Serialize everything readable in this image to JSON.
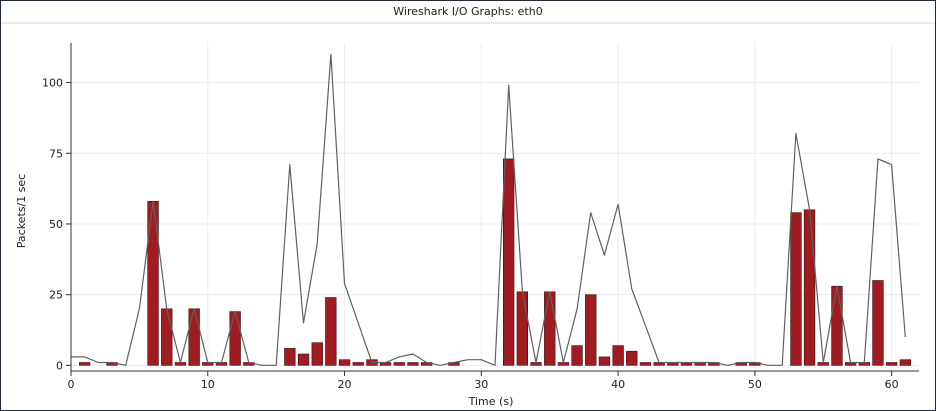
{
  "window": {
    "title": "Wireshark I/O Graphs: eth0"
  },
  "chart_data": {
    "type": "bar",
    "title": "Wireshark I/O Graphs: eth0",
    "xlabel": "Time (s)",
    "ylabel": "Packets/1 sec",
    "xlim": [
      0,
      62
    ],
    "ylim": [
      -2,
      114
    ],
    "xticks": [
      0,
      10,
      20,
      30,
      40,
      50,
      60
    ],
    "yticks": [
      0,
      25,
      50,
      75,
      100
    ],
    "grid": true,
    "colors": {
      "bars": "#a01c20",
      "bar_edge": "#3a0d0e",
      "line": "#606060"
    },
    "series": [
      {
        "kind": "bar",
        "x": [
          1,
          3,
          6,
          7,
          8,
          9,
          10,
          11,
          12,
          13,
          16,
          17,
          18,
          19,
          20,
          21,
          22,
          23,
          24,
          25,
          26,
          28,
          32,
          33,
          34,
          35,
          36,
          37,
          38,
          39,
          40,
          41,
          42,
          43,
          44,
          45,
          46,
          47,
          49,
          50,
          53,
          54,
          55,
          56,
          57,
          58,
          59,
          60,
          61
        ],
        "values": [
          1,
          1,
          58,
          20,
          1,
          20,
          1,
          1,
          19,
          1,
          6,
          4,
          8,
          24,
          2,
          1,
          2,
          1,
          1,
          1,
          1,
          1,
          73,
          26,
          1,
          26,
          1,
          7,
          25,
          3,
          7,
          5,
          1,
          1,
          1,
          1,
          1,
          1,
          1,
          1,
          54,
          55,
          1,
          28,
          1,
          1,
          30,
          1,
          2
        ]
      },
      {
        "kind": "line",
        "x": [
          0,
          1,
          2,
          3,
          4,
          5,
          6,
          7,
          8,
          9,
          10,
          11,
          12,
          13,
          14,
          15,
          16,
          17,
          18,
          19,
          20,
          21,
          22,
          23,
          24,
          25,
          26,
          27,
          28,
          29,
          30,
          31,
          32,
          33,
          34,
          35,
          36,
          37,
          38,
          39,
          40,
          41,
          42,
          43,
          44,
          45,
          46,
          47,
          48,
          49,
          50,
          51,
          52,
          53,
          54,
          55,
          56,
          57,
          58,
          59,
          60,
          61
        ],
        "values": [
          3,
          3,
          1,
          1,
          0,
          20,
          58,
          20,
          1,
          20,
          1,
          1,
          19,
          1,
          0,
          0,
          71,
          15,
          43,
          110,
          29,
          15,
          1,
          1,
          3,
          4,
          1,
          0,
          1,
          2,
          2,
          0,
          99,
          26,
          1,
          26,
          1,
          20,
          54,
          39,
          57,
          27,
          14,
          1,
          1,
          1,
          1,
          1,
          0,
          1,
          1,
          0,
          0,
          82,
          55,
          1,
          28,
          1,
          1,
          73,
          71,
          10
        ]
      }
    ]
  }
}
